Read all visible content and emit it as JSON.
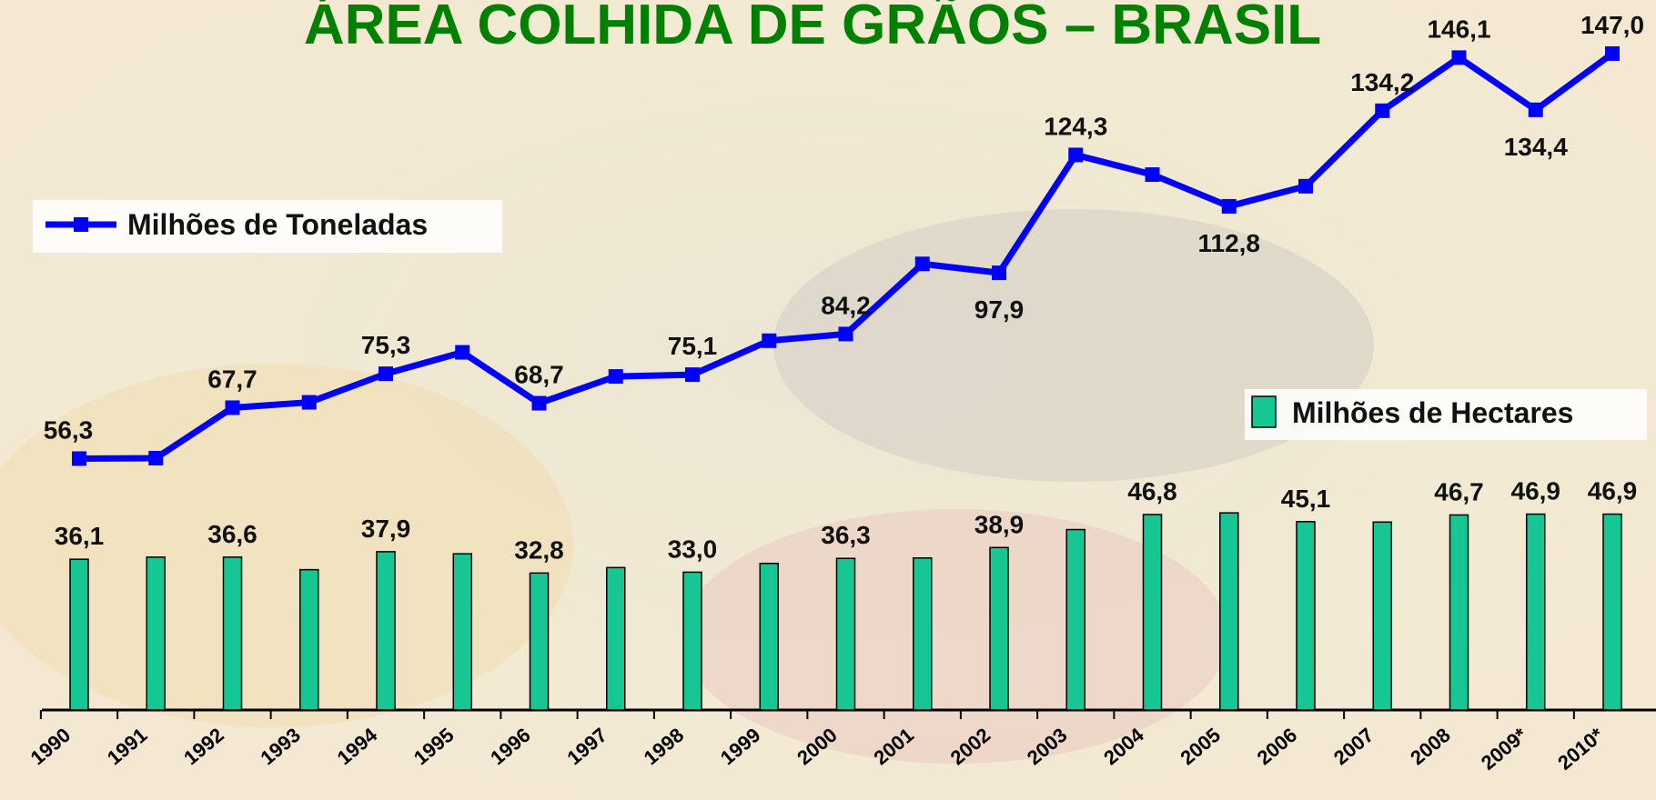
{
  "chart_data": {
    "type": "bar-line",
    "title": "ÁREA COLHIDA DE GRÃOS – BRASIL",
    "categories": [
      "1990",
      "1991",
      "1992",
      "1993",
      "1994",
      "1995",
      "1996",
      "1997",
      "1998",
      "1999",
      "2000",
      "2001",
      "2002",
      "2003",
      "2004",
      "2005",
      "2006",
      "2007",
      "2008",
      "2009*",
      "2010*"
    ],
    "ylim": [
      0,
      159
    ],
    "y2lim": [
      0,
      170
    ],
    "series": [
      {
        "name": "Milhões de Toneladas",
        "type": "line",
        "color": "#0000ff",
        "values": [
          56.3,
          56.4,
          67.7,
          68.9,
          75.3,
          80.1,
          68.7,
          74.7,
          75.1,
          82.7,
          84.2,
          99.9,
          97.9,
          124.3,
          119.9,
          112.8,
          117.3,
          134.2,
          146.1,
          134.4,
          147.0
        ],
        "value_labels": [
          "56,3",
          null,
          "67,7",
          null,
          "75,3",
          null,
          "68,7",
          null,
          "75,1",
          null,
          "84,2",
          null,
          "97,9",
          "124,3",
          null,
          "112,8",
          null,
          "134,2",
          "146,1",
          "134,4",
          "147,0"
        ]
      },
      {
        "name": "Milhões de Hectares",
        "type": "bar",
        "axis": "y2",
        "color": "#16c794",
        "values": [
          36.1,
          36.6,
          36.6,
          33.6,
          37.9,
          37.4,
          32.8,
          34.1,
          33.0,
          35.1,
          36.3,
          36.4,
          38.9,
          43.2,
          46.8,
          47.2,
          45.1,
          45.0,
          46.7,
          46.9,
          46.9
        ],
        "value_labels": [
          "36,1",
          null,
          "36,6",
          null,
          "37,9",
          null,
          "32,8",
          null,
          "33,0",
          null,
          "36,3",
          null,
          "38,9",
          null,
          "46,8",
          null,
          "45,1",
          null,
          "46,7",
          "46,9",
          "46,9"
        ]
      }
    ]
  }
}
